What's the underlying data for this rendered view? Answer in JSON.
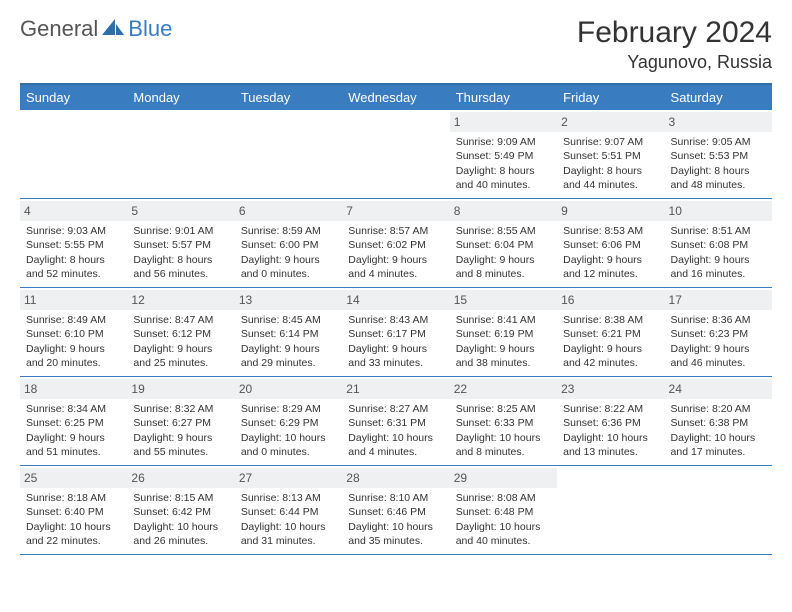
{
  "brand": {
    "part1": "General",
    "part2": "Blue"
  },
  "title": "February 2024",
  "location": "Yagunovo, Russia",
  "colors": {
    "header_bar": "#3a7cc0",
    "header_text": "#ffffff",
    "daynum_bg": "#eef0f2",
    "rule": "#3a7cc0",
    "body_text": "#333333",
    "brand_gray": "#555555",
    "brand_blue": "#3a7cc0",
    "background": "#ffffff"
  },
  "fonts": {
    "title_size": 30,
    "location_size": 18,
    "weekday_size": 13,
    "body_size": 10.5,
    "daynum_size": 12
  },
  "weekdays": [
    "Sunday",
    "Monday",
    "Tuesday",
    "Wednesday",
    "Thursday",
    "Friday",
    "Saturday"
  ],
  "weeks": [
    [
      {
        "blank": true
      },
      {
        "blank": true
      },
      {
        "blank": true
      },
      {
        "blank": true
      },
      {
        "day": "1",
        "sunrise": "Sunrise: 9:09 AM",
        "sunset": "Sunset: 5:49 PM",
        "daylight": "Daylight: 8 hours and 40 minutes."
      },
      {
        "day": "2",
        "sunrise": "Sunrise: 9:07 AM",
        "sunset": "Sunset: 5:51 PM",
        "daylight": "Daylight: 8 hours and 44 minutes."
      },
      {
        "day": "3",
        "sunrise": "Sunrise: 9:05 AM",
        "sunset": "Sunset: 5:53 PM",
        "daylight": "Daylight: 8 hours and 48 minutes."
      }
    ],
    [
      {
        "day": "4",
        "sunrise": "Sunrise: 9:03 AM",
        "sunset": "Sunset: 5:55 PM",
        "daylight": "Daylight: 8 hours and 52 minutes."
      },
      {
        "day": "5",
        "sunrise": "Sunrise: 9:01 AM",
        "sunset": "Sunset: 5:57 PM",
        "daylight": "Daylight: 8 hours and 56 minutes."
      },
      {
        "day": "6",
        "sunrise": "Sunrise: 8:59 AM",
        "sunset": "Sunset: 6:00 PM",
        "daylight": "Daylight: 9 hours and 0 minutes."
      },
      {
        "day": "7",
        "sunrise": "Sunrise: 8:57 AM",
        "sunset": "Sunset: 6:02 PM",
        "daylight": "Daylight: 9 hours and 4 minutes."
      },
      {
        "day": "8",
        "sunrise": "Sunrise: 8:55 AM",
        "sunset": "Sunset: 6:04 PM",
        "daylight": "Daylight: 9 hours and 8 minutes."
      },
      {
        "day": "9",
        "sunrise": "Sunrise: 8:53 AM",
        "sunset": "Sunset: 6:06 PM",
        "daylight": "Daylight: 9 hours and 12 minutes."
      },
      {
        "day": "10",
        "sunrise": "Sunrise: 8:51 AM",
        "sunset": "Sunset: 6:08 PM",
        "daylight": "Daylight: 9 hours and 16 minutes."
      }
    ],
    [
      {
        "day": "11",
        "sunrise": "Sunrise: 8:49 AM",
        "sunset": "Sunset: 6:10 PM",
        "daylight": "Daylight: 9 hours and 20 minutes."
      },
      {
        "day": "12",
        "sunrise": "Sunrise: 8:47 AM",
        "sunset": "Sunset: 6:12 PM",
        "daylight": "Daylight: 9 hours and 25 minutes."
      },
      {
        "day": "13",
        "sunrise": "Sunrise: 8:45 AM",
        "sunset": "Sunset: 6:14 PM",
        "daylight": "Daylight: 9 hours and 29 minutes."
      },
      {
        "day": "14",
        "sunrise": "Sunrise: 8:43 AM",
        "sunset": "Sunset: 6:17 PM",
        "daylight": "Daylight: 9 hours and 33 minutes."
      },
      {
        "day": "15",
        "sunrise": "Sunrise: 8:41 AM",
        "sunset": "Sunset: 6:19 PM",
        "daylight": "Daylight: 9 hours and 38 minutes."
      },
      {
        "day": "16",
        "sunrise": "Sunrise: 8:38 AM",
        "sunset": "Sunset: 6:21 PM",
        "daylight": "Daylight: 9 hours and 42 minutes."
      },
      {
        "day": "17",
        "sunrise": "Sunrise: 8:36 AM",
        "sunset": "Sunset: 6:23 PM",
        "daylight": "Daylight: 9 hours and 46 minutes."
      }
    ],
    [
      {
        "day": "18",
        "sunrise": "Sunrise: 8:34 AM",
        "sunset": "Sunset: 6:25 PM",
        "daylight": "Daylight: 9 hours and 51 minutes."
      },
      {
        "day": "19",
        "sunrise": "Sunrise: 8:32 AM",
        "sunset": "Sunset: 6:27 PM",
        "daylight": "Daylight: 9 hours and 55 minutes."
      },
      {
        "day": "20",
        "sunrise": "Sunrise: 8:29 AM",
        "sunset": "Sunset: 6:29 PM",
        "daylight": "Daylight: 10 hours and 0 minutes."
      },
      {
        "day": "21",
        "sunrise": "Sunrise: 8:27 AM",
        "sunset": "Sunset: 6:31 PM",
        "daylight": "Daylight: 10 hours and 4 minutes."
      },
      {
        "day": "22",
        "sunrise": "Sunrise: 8:25 AM",
        "sunset": "Sunset: 6:33 PM",
        "daylight": "Daylight: 10 hours and 8 minutes."
      },
      {
        "day": "23",
        "sunrise": "Sunrise: 8:22 AM",
        "sunset": "Sunset: 6:36 PM",
        "daylight": "Daylight: 10 hours and 13 minutes."
      },
      {
        "day": "24",
        "sunrise": "Sunrise: 8:20 AM",
        "sunset": "Sunset: 6:38 PM",
        "daylight": "Daylight: 10 hours and 17 minutes."
      }
    ],
    [
      {
        "day": "25",
        "sunrise": "Sunrise: 8:18 AM",
        "sunset": "Sunset: 6:40 PM",
        "daylight": "Daylight: 10 hours and 22 minutes."
      },
      {
        "day": "26",
        "sunrise": "Sunrise: 8:15 AM",
        "sunset": "Sunset: 6:42 PM",
        "daylight": "Daylight: 10 hours and 26 minutes."
      },
      {
        "day": "27",
        "sunrise": "Sunrise: 8:13 AM",
        "sunset": "Sunset: 6:44 PM",
        "daylight": "Daylight: 10 hours and 31 minutes."
      },
      {
        "day": "28",
        "sunrise": "Sunrise: 8:10 AM",
        "sunset": "Sunset: 6:46 PM",
        "daylight": "Daylight: 10 hours and 35 minutes."
      },
      {
        "day": "29",
        "sunrise": "Sunrise: 8:08 AM",
        "sunset": "Sunset: 6:48 PM",
        "daylight": "Daylight: 10 hours and 40 minutes."
      },
      {
        "blank": true
      },
      {
        "blank": true
      }
    ]
  ]
}
